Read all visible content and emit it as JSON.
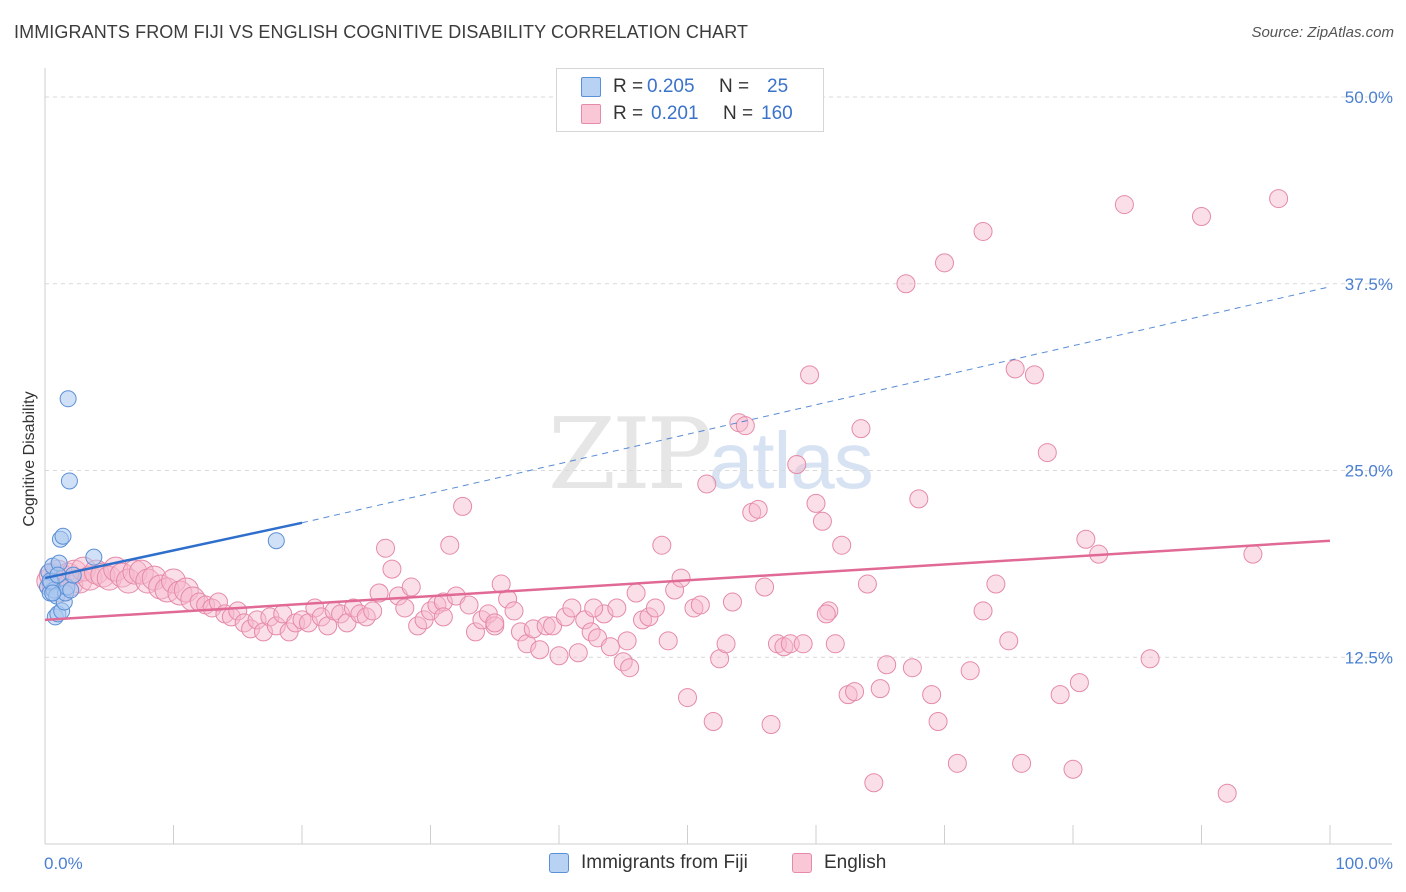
{
  "title": "IMMIGRANTS FROM FIJI VS ENGLISH COGNITIVE DISABILITY CORRELATION CHART",
  "source": "Source: ZipAtlas.com",
  "watermark": {
    "zip": "ZIP",
    "atlas": "atlas"
  },
  "legend": {
    "fiji": {
      "r_label": "R =",
      "r_value": "0.205",
      "n_label": "N =",
      "n_value": "25"
    },
    "english": {
      "r_label": "R =",
      "r_value": "0.201",
      "n_label": "N =",
      "n_value": "160"
    }
  },
  "bottom_legend": {
    "fiji": "Immigrants from Fiji",
    "english": "English"
  },
  "colors": {
    "fiji_fill": "#a9c8f0",
    "fiji_stroke": "#5b8fd6",
    "fiji_line": "#2f6fcc",
    "english_fill": "#f6b9cc",
    "english_stroke": "#e58aa8",
    "english_line": "#e06a95",
    "tick_text": "#4a7fd1",
    "grid": "#d9d9d9"
  },
  "chart_data": {
    "type": "scatter",
    "title": "IMMIGRANTS FROM FIJI VS ENGLISH COGNITIVE DISABILITY CORRELATION CHART",
    "xlabel": "",
    "ylabel": "Cognitive Disability",
    "xlim": [
      0,
      100
    ],
    "ylim": [
      0,
      52
    ],
    "x_tick_labels": [
      "0.0%",
      "100.0%"
    ],
    "y_ticks": [
      12.5,
      25.0,
      37.5,
      50.0
    ],
    "y_tick_labels": [
      "12.5%",
      "25.0%",
      "37.5%",
      "50.0%"
    ],
    "series": [
      {
        "name": "Immigrants from Fiji",
        "trend": {
          "x0": 0,
          "y0": 17.8,
          "x1": 20,
          "y1": 21.5,
          "dashed_to_x": 100,
          "dashed_y1": 37.3
        },
        "points": [
          [
            0.2,
            17.2
          ],
          [
            0.3,
            18.2
          ],
          [
            0.4,
            16.8
          ],
          [
            0.5,
            17.5
          ],
          [
            0.6,
            18.6
          ],
          [
            0.7,
            17.0
          ],
          [
            0.8,
            15.2
          ],
          [
            0.9,
            16.6
          ],
          [
            1.0,
            15.4
          ],
          [
            1.1,
            18.8
          ],
          [
            1.2,
            20.4
          ],
          [
            1.3,
            15.6
          ],
          [
            1.4,
            20.6
          ],
          [
            1.5,
            16.2
          ],
          [
            1.6,
            16.8
          ],
          [
            1.7,
            17.2
          ],
          [
            1.8,
            29.8
          ],
          [
            1.9,
            24.3
          ],
          [
            2.0,
            17.0
          ],
          [
            2.2,
            18.0
          ],
          [
            3.8,
            19.2
          ],
          [
            18.0,
            20.3
          ],
          [
            0.4,
            17.6
          ],
          [
            0.6,
            16.8
          ],
          [
            1.0,
            18.0
          ]
        ]
      },
      {
        "name": "English",
        "trend": {
          "x0": 0,
          "y0": 15.0,
          "x1": 100,
          "y1": 20.3
        },
        "points": [
          [
            0.3,
            17.6
          ],
          [
            0.5,
            18.0
          ],
          [
            0.7,
            17.4
          ],
          [
            1.0,
            18.2
          ],
          [
            1.2,
            17.0
          ],
          [
            1.5,
            17.8
          ],
          [
            1.8,
            18.0
          ],
          [
            2.0,
            17.4
          ],
          [
            2.3,
            18.2
          ],
          [
            2.7,
            17.6
          ],
          [
            3.0,
            18.4
          ],
          [
            3.5,
            17.8
          ],
          [
            4.0,
            18.2
          ],
          [
            4.5,
            18.0
          ],
          [
            5.0,
            17.8
          ],
          [
            5.5,
            18.4
          ],
          [
            6.0,
            18.0
          ],
          [
            6.5,
            17.6
          ],
          [
            7.0,
            18.2
          ],
          [
            7.5,
            18.2
          ],
          [
            8.0,
            17.6
          ],
          [
            8.5,
            17.8
          ],
          [
            9.0,
            17.2
          ],
          [
            9.5,
            17.0
          ],
          [
            10.0,
            17.6
          ],
          [
            10.5,
            16.8
          ],
          [
            11.0,
            17.0
          ],
          [
            11.5,
            16.4
          ],
          [
            12.0,
            16.2
          ],
          [
            12.5,
            16.0
          ],
          [
            13.0,
            15.8
          ],
          [
            13.5,
            16.2
          ],
          [
            14.0,
            15.4
          ],
          [
            14.5,
            15.2
          ],
          [
            15.0,
            15.6
          ],
          [
            15.5,
            14.8
          ],
          [
            16.0,
            14.4
          ],
          [
            16.5,
            15.0
          ],
          [
            17.0,
            14.2
          ],
          [
            17.5,
            15.2
          ],
          [
            18.0,
            14.6
          ],
          [
            18.5,
            15.4
          ],
          [
            19.0,
            14.2
          ],
          [
            19.5,
            14.8
          ],
          [
            20.0,
            15.0
          ],
          [
            20.5,
            14.8
          ],
          [
            21.0,
            15.8
          ],
          [
            21.5,
            15.2
          ],
          [
            22.0,
            14.6
          ],
          [
            22.5,
            15.6
          ],
          [
            23.0,
            15.4
          ],
          [
            23.5,
            14.8
          ],
          [
            24.0,
            15.8
          ],
          [
            24.5,
            15.4
          ],
          [
            25.0,
            15.2
          ],
          [
            25.5,
            15.6
          ],
          [
            26.0,
            16.8
          ],
          [
            26.5,
            19.8
          ],
          [
            27.0,
            18.4
          ],
          [
            27.5,
            16.6
          ],
          [
            28.0,
            15.8
          ],
          [
            28.5,
            17.2
          ],
          [
            29.0,
            14.6
          ],
          [
            29.5,
            15.0
          ],
          [
            30.0,
            15.6
          ],
          [
            30.5,
            16.0
          ],
          [
            31.0,
            16.2
          ],
          [
            31.5,
            20.0
          ],
          [
            32.0,
            16.6
          ],
          [
            32.5,
            22.6
          ],
          [
            33.0,
            16.0
          ],
          [
            33.5,
            14.2
          ],
          [
            34.0,
            15.0
          ],
          [
            34.5,
            15.4
          ],
          [
            35.0,
            14.6
          ],
          [
            35.5,
            17.4
          ],
          [
            36.0,
            16.4
          ],
          [
            36.5,
            15.6
          ],
          [
            37.0,
            14.2
          ],
          [
            37.5,
            13.4
          ],
          [
            38.0,
            14.4
          ],
          [
            38.5,
            13.0
          ],
          [
            39.0,
            14.6
          ],
          [
            39.5,
            14.6
          ],
          [
            40.0,
            12.6
          ],
          [
            40.5,
            15.2
          ],
          [
            41.0,
            15.8
          ],
          [
            41.5,
            12.8
          ],
          [
            42.0,
            15.0
          ],
          [
            42.5,
            14.2
          ],
          [
            43.0,
            13.8
          ],
          [
            43.5,
            15.4
          ],
          [
            44.0,
            13.2
          ],
          [
            44.5,
            15.8
          ],
          [
            45.0,
            12.2
          ],
          [
            45.5,
            11.8
          ],
          [
            46.0,
            16.8
          ],
          [
            46.5,
            15.0
          ],
          [
            47.0,
            15.2
          ],
          [
            47.5,
            15.8
          ],
          [
            48.0,
            20.0
          ],
          [
            48.5,
            13.6
          ],
          [
            49.0,
            17.0
          ],
          [
            49.5,
            17.8
          ],
          [
            50.0,
            9.8
          ],
          [
            50.5,
            15.8
          ],
          [
            51.0,
            16.0
          ],
          [
            51.5,
            24.1
          ],
          [
            52.0,
            8.2
          ],
          [
            52.5,
            12.4
          ],
          [
            53.0,
            13.4
          ],
          [
            53.5,
            16.2
          ],
          [
            54.0,
            28.2
          ],
          [
            54.5,
            28.0
          ],
          [
            55.0,
            22.2
          ],
          [
            55.5,
            22.4
          ],
          [
            56.0,
            17.2
          ],
          [
            56.5,
            8.0
          ],
          [
            57.0,
            13.4
          ],
          [
            57.5,
            13.2
          ],
          [
            58.0,
            13.4
          ],
          [
            58.5,
            25.4
          ],
          [
            59.0,
            13.4
          ],
          [
            59.5,
            31.4
          ],
          [
            60.0,
            22.8
          ],
          [
            60.5,
            21.6
          ],
          [
            61.0,
            15.6
          ],
          [
            61.5,
            13.4
          ],
          [
            62.0,
            20.0
          ],
          [
            62.5,
            10.0
          ],
          [
            63.0,
            10.2
          ],
          [
            63.5,
            27.8
          ],
          [
            64.0,
            17.4
          ],
          [
            64.5,
            4.1
          ],
          [
            65.0,
            10.4
          ],
          [
            65.5,
            12.0
          ],
          [
            67.0,
            37.5
          ],
          [
            67.5,
            11.8
          ],
          [
            68.0,
            23.1
          ],
          [
            69.0,
            10.0
          ],
          [
            69.5,
            8.2
          ],
          [
            70.0,
            38.9
          ],
          [
            71.0,
            5.4
          ],
          [
            72.0,
            11.6
          ],
          [
            73.0,
            15.6
          ],
          [
            74.0,
            17.4
          ],
          [
            75.0,
            13.6
          ],
          [
            76.0,
            5.4
          ],
          [
            77.0,
            31.4
          ],
          [
            78.0,
            26.2
          ],
          [
            79.0,
            10.0
          ],
          [
            80.0,
            5.0
          ],
          [
            82.0,
            19.4
          ],
          [
            84.0,
            42.8
          ],
          [
            86.0,
            12.4
          ],
          [
            90.0,
            42.0
          ],
          [
            92.0,
            3.4
          ],
          [
            94.0,
            19.4
          ],
          [
            96.0,
            43.2
          ],
          [
            73.0,
            41.0
          ],
          [
            81.0,
            20.4
          ],
          [
            75.5,
            31.8
          ],
          [
            80.5,
            10.8
          ],
          [
            60.8,
            15.4
          ],
          [
            45.3,
            13.6
          ],
          [
            42.7,
            15.8
          ],
          [
            31.0,
            15.2
          ],
          [
            35.0,
            14.8
          ]
        ]
      }
    ]
  }
}
